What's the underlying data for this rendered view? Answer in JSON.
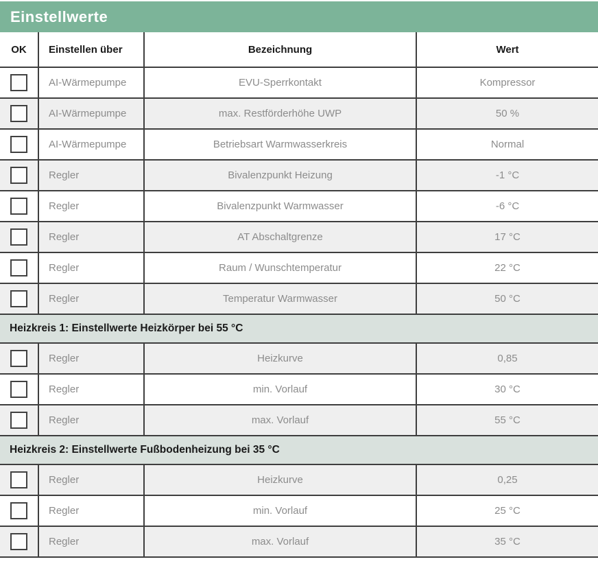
{
  "title": "Einstellwerte",
  "columns": {
    "ok": "OK",
    "via": "Einstellen über",
    "name": "Bezeichnung",
    "value": "Wert"
  },
  "groups": [
    {
      "header": null,
      "rows": [
        {
          "via": "AI-Wärmepumpe",
          "name": "EVU-Sperrkontakt",
          "value": "Kompressor"
        },
        {
          "via": "AI-Wärmepumpe",
          "name": "max. Restförderhöhe UWP",
          "value": "50 %"
        },
        {
          "via": "AI-Wärmepumpe",
          "name": "Betriebsart Warmwasserkreis",
          "value": "Normal"
        },
        {
          "via": "Regler",
          "name": "Bivalenzpunkt Heizung",
          "value": "-1 °C"
        },
        {
          "via": "Regler",
          "name": "Bivalenzpunkt Warmwasser",
          "value": "-6 °C"
        },
        {
          "via": "Regler",
          "name": "AT Abschaltgrenze",
          "value": "17 °C"
        },
        {
          "via": "Regler",
          "name": "Raum / Wunschtemperatur",
          "value": "22 °C"
        },
        {
          "via": "Regler",
          "name": "Temperatur Warmwasser",
          "value": "50 °C"
        }
      ]
    },
    {
      "header": "Heizkreis 1: Einstellwerte Heizkörper bei 55 °C",
      "rows": [
        {
          "via": "Regler",
          "name": "Heizkurve",
          "value": "0,85"
        },
        {
          "via": "Regler",
          "name": "min. Vorlauf",
          "value": "30 °C"
        },
        {
          "via": "Regler",
          "name": "max. Vorlauf",
          "value": "55 °C"
        }
      ]
    },
    {
      "header": "Heizkreis 2: Einstellwerte Fußbodenheizung bei 35 °C",
      "rows": [
        {
          "via": "Regler",
          "name": "Heizkurve",
          "value": "0,25"
        },
        {
          "via": "Regler",
          "name": "min. Vorlauf",
          "value": "25 °C"
        },
        {
          "via": "Regler",
          "name": "max. Vorlauf",
          "value": "35 °C"
        }
      ]
    }
  ],
  "colors": {
    "title_bg": "#7cb499",
    "section_bg": "#d9e1dd",
    "alt_row_bg": "#efefef",
    "border": "#3e3e3e",
    "muted_text": "#8c8c8c",
    "header_text": "#1a1a1a"
  }
}
